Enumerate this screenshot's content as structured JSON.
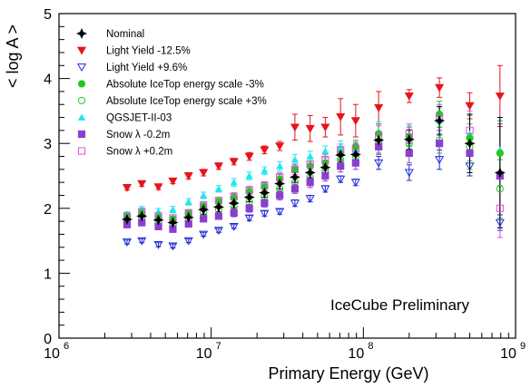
{
  "chart_data": {
    "type": "scatter",
    "title": "",
    "xlabel": "Primary Energy (GeV)",
    "ylabel": "< log A >",
    "xscale": "log",
    "xlim": [
      1000000,
      1000000000
    ],
    "ylim": [
      0,
      5
    ],
    "x_tick_labels": [
      "10^6",
      "10^7",
      "10^8",
      "10^9"
    ],
    "y_tick_labels": [
      "0",
      "1",
      "2",
      "3",
      "4",
      "5"
    ],
    "annotation": "IceCube Preliminary",
    "legend_position": "top-left",
    "series": [
      {
        "name": "Nominal",
        "marker": "star",
        "color": "#000000",
        "points": [
          [
            2800000.0,
            1.83,
            0.06
          ],
          [
            3500000.0,
            1.88,
            0.06
          ],
          [
            4500000.0,
            1.82,
            0.06
          ],
          [
            5600000.0,
            1.78,
            0.06
          ],
          [
            7100000.0,
            1.86,
            0.06
          ],
          [
            8900000.0,
            1.98,
            0.07
          ],
          [
            11200000.0,
            2.02,
            0.07
          ],
          [
            14100000.0,
            2.08,
            0.07
          ],
          [
            17800000.0,
            2.17,
            0.07
          ],
          [
            22400000.0,
            2.24,
            0.07
          ],
          [
            28200000.0,
            2.38,
            0.08
          ],
          [
            35500000.0,
            2.48,
            0.08
          ],
          [
            44700000.0,
            2.55,
            0.09
          ],
          [
            56200000.0,
            2.63,
            0.09
          ],
          [
            70800000.0,
            2.82,
            0.1
          ],
          [
            89000000.0,
            2.83,
            0.1
          ],
          [
            126000000.0,
            3.05,
            0.12
          ],
          [
            200000000.0,
            3.06,
            0.15
          ],
          [
            316000000.0,
            3.35,
            0.22
          ],
          [
            500000000.0,
            3.0,
            0.45
          ],
          [
            790000000.0,
            2.55,
            0.85
          ]
        ]
      },
      {
        "name": "Light Yield -12.5%",
        "marker": "triangle-down",
        "color": "#e8141c",
        "points": [
          [
            2800000.0,
            2.32,
            0.04
          ],
          [
            3500000.0,
            2.38,
            0.04
          ],
          [
            4500000.0,
            2.33,
            0.04
          ],
          [
            5600000.0,
            2.42,
            0.04
          ],
          [
            7100000.0,
            2.5,
            0.05
          ],
          [
            8900000.0,
            2.55,
            0.05
          ],
          [
            11200000.0,
            2.65,
            0.05
          ],
          [
            14100000.0,
            2.72,
            0.05
          ],
          [
            17800000.0,
            2.8,
            0.06
          ],
          [
            22400000.0,
            2.9,
            0.06
          ],
          [
            28200000.0,
            2.96,
            0.07
          ],
          [
            35500000.0,
            3.25,
            0.2
          ],
          [
            44700000.0,
            3.23,
            0.2
          ],
          [
            56200000.0,
            3.25,
            0.15
          ],
          [
            70800000.0,
            3.41,
            0.28
          ],
          [
            89000000.0,
            3.35,
            0.25
          ],
          [
            126000000.0,
            3.55,
            0.25
          ],
          [
            200000000.0,
            3.73,
            0.1
          ],
          [
            316000000.0,
            3.86,
            0.15
          ],
          [
            500000000.0,
            3.58,
            0.2
          ],
          [
            790000000.0,
            3.73,
            0.47
          ]
        ]
      },
      {
        "name": "Light Yield +9.6%",
        "marker": "triangle-down-open",
        "color": "#1f2bd6",
        "points": [
          [
            2800000.0,
            1.48,
            0.03
          ],
          [
            3500000.0,
            1.5,
            0.03
          ],
          [
            4500000.0,
            1.44,
            0.03
          ],
          [
            5600000.0,
            1.42,
            0.03
          ],
          [
            7100000.0,
            1.5,
            0.03
          ],
          [
            8900000.0,
            1.6,
            0.03
          ],
          [
            11200000.0,
            1.66,
            0.03
          ],
          [
            14100000.0,
            1.72,
            0.03
          ],
          [
            17800000.0,
            1.85,
            0.04
          ],
          [
            22400000.0,
            1.92,
            0.04
          ],
          [
            28200000.0,
            1.95,
            0.04
          ],
          [
            35500000.0,
            2.08,
            0.05
          ],
          [
            44700000.0,
            2.15,
            0.05
          ],
          [
            56200000.0,
            2.3,
            0.05
          ],
          [
            70800000.0,
            2.45,
            0.05
          ],
          [
            89000000.0,
            2.4,
            0.05
          ],
          [
            126000000.0,
            2.7,
            0.1
          ],
          [
            200000000.0,
            2.55,
            0.12
          ],
          [
            316000000.0,
            2.75,
            0.15
          ],
          [
            500000000.0,
            2.65,
            0.15
          ],
          [
            790000000.0,
            1.78,
            0.12
          ]
        ]
      },
      {
        "name": "Absolute IceTop energy scale -3%",
        "marker": "circle",
        "color": "#22c91d",
        "points": [
          [
            2800000.0,
            1.87,
            0.05
          ],
          [
            3500000.0,
            1.93,
            0.05
          ],
          [
            4500000.0,
            1.86,
            0.05
          ],
          [
            5600000.0,
            1.83,
            0.05
          ],
          [
            7100000.0,
            1.92,
            0.05
          ],
          [
            8900000.0,
            2.03,
            0.05
          ],
          [
            11200000.0,
            2.1,
            0.05
          ],
          [
            14100000.0,
            2.16,
            0.06
          ],
          [
            17800000.0,
            2.25,
            0.06
          ],
          [
            22400000.0,
            2.33,
            0.06
          ],
          [
            28200000.0,
            2.45,
            0.07
          ],
          [
            35500000.0,
            2.6,
            0.08
          ],
          [
            44700000.0,
            2.65,
            0.08
          ],
          [
            56200000.0,
            2.7,
            0.08
          ],
          [
            70800000.0,
            2.85,
            0.09
          ],
          [
            89000000.0,
            2.95,
            0.1
          ],
          [
            126000000.0,
            3.15,
            0.15
          ],
          [
            200000000.0,
            3.1,
            0.15
          ],
          [
            316000000.0,
            3.45,
            0.2
          ],
          [
            500000000.0,
            3.08,
            0.35
          ],
          [
            790000000.0,
            2.85,
            0.5
          ]
        ]
      },
      {
        "name": "Absolute IceTop energy scale +3%",
        "marker": "circle-open",
        "color": "#22c91d",
        "points": [
          [
            2800000.0,
            1.8,
            0.05
          ],
          [
            3500000.0,
            1.85,
            0.05
          ],
          [
            4500000.0,
            1.79,
            0.05
          ],
          [
            5600000.0,
            1.75,
            0.05
          ],
          [
            7100000.0,
            1.82,
            0.05
          ],
          [
            8900000.0,
            1.93,
            0.05
          ],
          [
            11200000.0,
            1.98,
            0.05
          ],
          [
            14100000.0,
            2.03,
            0.06
          ],
          [
            17800000.0,
            2.1,
            0.06
          ],
          [
            22400000.0,
            2.18,
            0.06
          ],
          [
            28200000.0,
            2.3,
            0.07
          ],
          [
            35500000.0,
            2.4,
            0.08
          ],
          [
            44700000.0,
            2.48,
            0.08
          ],
          [
            56200000.0,
            2.58,
            0.08
          ],
          [
            70800000.0,
            2.75,
            0.09
          ],
          [
            89000000.0,
            2.8,
            0.1
          ],
          [
            126000000.0,
            3.0,
            0.15
          ],
          [
            200000000.0,
            3.0,
            0.15
          ],
          [
            316000000.0,
            3.05,
            0.2
          ],
          [
            500000000.0,
            2.95,
            0.35
          ],
          [
            790000000.0,
            2.3,
            0.45
          ]
        ]
      },
      {
        "name": "QGSJET-II-03",
        "marker": "triangle-up",
        "color": "#22e6f0",
        "points": [
          [
            2800000.0,
            1.9,
            0.05
          ],
          [
            3500000.0,
            1.98,
            0.05
          ],
          [
            4500000.0,
            1.95,
            0.05
          ],
          [
            5600000.0,
            1.98,
            0.05
          ],
          [
            7100000.0,
            2.1,
            0.05
          ],
          [
            8900000.0,
            2.2,
            0.05
          ],
          [
            11200000.0,
            2.3,
            0.05
          ],
          [
            14100000.0,
            2.4,
            0.06
          ],
          [
            17800000.0,
            2.5,
            0.06
          ],
          [
            22400000.0,
            2.58,
            0.06
          ],
          [
            28200000.0,
            2.65,
            0.07
          ],
          [
            35500000.0,
            2.75,
            0.08
          ],
          [
            44700000.0,
            2.8,
            0.08
          ],
          [
            56200000.0,
            2.88,
            0.08
          ],
          [
            70800000.0,
            2.95,
            0.09
          ],
          [
            89000000.0,
            2.9,
            0.1
          ],
          [
            126000000.0,
            3.18,
            0.15
          ],
          [
            200000000.0,
            3.12,
            0.15
          ],
          [
            316000000.0,
            3.35,
            0.2
          ],
          [
            500000000.0,
            3.15,
            0.3
          ],
          [
            790000000.0,
            2.9,
            0.45
          ]
        ]
      },
      {
        "name": "Snow λ -0.2m",
        "marker": "square",
        "color": "#8b3fcf",
        "points": [
          [
            2800000.0,
            1.75,
            0.05
          ],
          [
            3500000.0,
            1.78,
            0.05
          ],
          [
            4500000.0,
            1.72,
            0.05
          ],
          [
            5600000.0,
            1.68,
            0.05
          ],
          [
            7100000.0,
            1.76,
            0.05
          ],
          [
            8900000.0,
            1.84,
            0.05
          ],
          [
            11200000.0,
            1.88,
            0.05
          ],
          [
            14100000.0,
            1.93,
            0.06
          ],
          [
            17800000.0,
            2.0,
            0.06
          ],
          [
            22400000.0,
            2.08,
            0.06
          ],
          [
            28200000.0,
            2.2,
            0.07
          ],
          [
            35500000.0,
            2.3,
            0.07
          ],
          [
            44700000.0,
            2.4,
            0.08
          ],
          [
            56200000.0,
            2.5,
            0.08
          ],
          [
            70800000.0,
            2.65,
            0.09
          ],
          [
            89000000.0,
            2.7,
            0.1
          ],
          [
            126000000.0,
            2.95,
            0.12
          ],
          [
            200000000.0,
            2.85,
            0.15
          ],
          [
            316000000.0,
            3.0,
            0.2
          ],
          [
            500000000.0,
            2.85,
            0.3
          ],
          [
            790000000.0,
            2.5,
            0.8
          ]
        ]
      },
      {
        "name": "Snow λ +0.2m",
        "marker": "square-open",
        "color": "#e64be6",
        "points": [
          [
            2800000.0,
            1.88,
            0.05
          ],
          [
            3500000.0,
            1.95,
            0.05
          ],
          [
            4500000.0,
            1.88,
            0.05
          ],
          [
            5600000.0,
            1.85,
            0.05
          ],
          [
            7100000.0,
            1.93,
            0.05
          ],
          [
            8900000.0,
            2.05,
            0.05
          ],
          [
            11200000.0,
            2.12,
            0.05
          ],
          [
            14100000.0,
            2.18,
            0.06
          ],
          [
            17800000.0,
            2.28,
            0.06
          ],
          [
            22400000.0,
            2.35,
            0.06
          ],
          [
            28200000.0,
            2.48,
            0.07
          ],
          [
            35500000.0,
            2.6,
            0.08
          ],
          [
            44700000.0,
            2.68,
            0.08
          ],
          [
            56200000.0,
            2.75,
            0.08
          ],
          [
            70800000.0,
            2.9,
            0.09
          ],
          [
            89000000.0,
            2.92,
            0.1
          ],
          [
            126000000.0,
            3.12,
            0.15
          ],
          [
            200000000.0,
            3.15,
            0.15
          ],
          [
            316000000.0,
            3.4,
            0.2
          ],
          [
            500000000.0,
            3.2,
            0.3
          ],
          [
            790000000.0,
            2.0,
            0.45
          ]
        ]
      }
    ]
  }
}
